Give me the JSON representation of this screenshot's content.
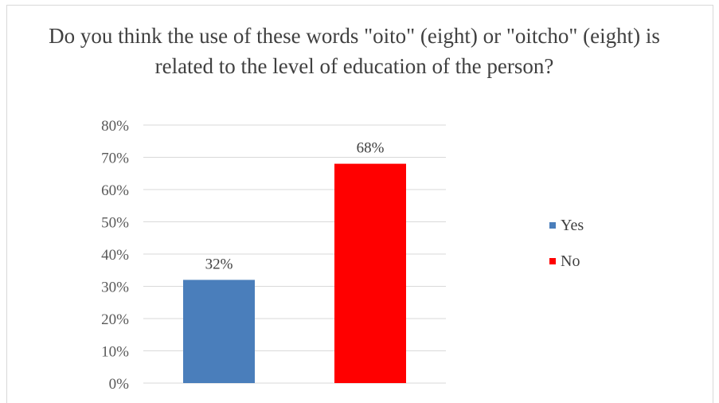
{
  "chart_data": {
    "type": "bar",
    "title": "Do you think the use of these words \"oito\" (eight) or \"oitcho\" (eight) is related to the level of education of the person?",
    "categories": [
      "Yes",
      "No"
    ],
    "values": [
      32,
      68
    ],
    "value_labels": [
      "32%",
      "68%"
    ],
    "colors": [
      "#4a7ebb",
      "#ff0000"
    ],
    "ylim": [
      0,
      80
    ],
    "yticks": [
      "0%",
      "10%",
      "20%",
      "30%",
      "40%",
      "50%",
      "60%",
      "70%",
      "80%"
    ],
    "xlabel": "",
    "ylabel": "",
    "grid": true,
    "legend": {
      "position": "right",
      "entries": [
        {
          "label": "Yes",
          "color": "#4a7ebb"
        },
        {
          "label": "No",
          "color": "#ff0000"
        }
      ]
    }
  }
}
